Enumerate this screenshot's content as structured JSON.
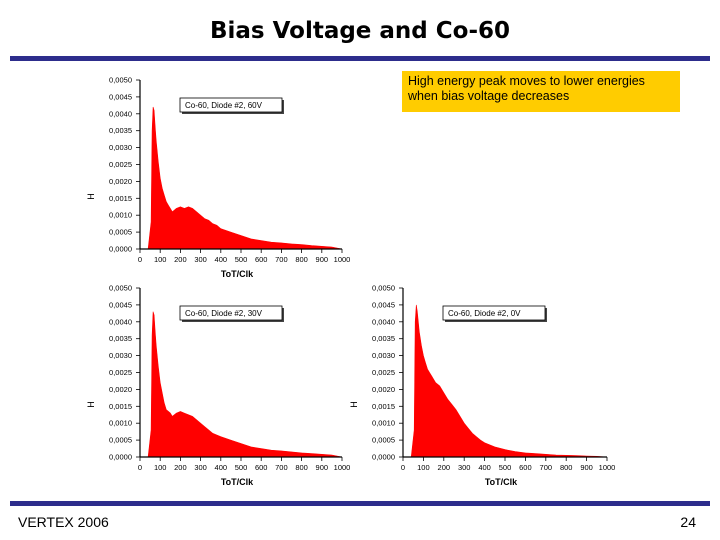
{
  "slide": {
    "title": "Bias Voltage and Co-60",
    "note": "High energy peak moves to lower energies when bias voltage decreases",
    "footer_left": "VERTEX 2006",
    "page_number": "24",
    "rule_color": "#2d2d8c",
    "note_color": "#ffcc00"
  },
  "chart_data": [
    {
      "type": "area",
      "legend": "Co-60, Diode #2, 60V",
      "xlabel": "ToT/Clk",
      "ylabel": "H",
      "xlim": [
        0,
        1000
      ],
      "ylim": [
        0,
        0.005
      ],
      "xticks": [
        "0",
        "100",
        "200",
        "300",
        "400",
        "500",
        "600",
        "700",
        "800",
        "900",
        "1000"
      ],
      "yticks": [
        "0,0000",
        "0,0005",
        "0,0010",
        "0,0015",
        "0,0020",
        "0,0025",
        "0,0030",
        "0,0035",
        "0,0040",
        "0,0045",
        "0,0050"
      ],
      "color": "#ff0000",
      "x": [
        0,
        40,
        55,
        60,
        65,
        70,
        75,
        80,
        90,
        100,
        110,
        120,
        130,
        140,
        150,
        160,
        180,
        200,
        220,
        240,
        260,
        280,
        300,
        320,
        340,
        360,
        380,
        400,
        450,
        500,
        550,
        600,
        650,
        700,
        750,
        800,
        850,
        900,
        950,
        1000
      ],
      "y": [
        0,
        0,
        0.0008,
        0.0035,
        0.0042,
        0.0041,
        0.0036,
        0.0032,
        0.0026,
        0.0021,
        0.0018,
        0.0016,
        0.0014,
        0.0013,
        0.0012,
        0.0011,
        0.0012,
        0.00125,
        0.0012,
        0.00125,
        0.0012,
        0.0011,
        0.001,
        0.0009,
        0.00085,
        0.00075,
        0.0007,
        0.0006,
        0.0005,
        0.0004,
        0.0003,
        0.00025,
        0.0002,
        0.00018,
        0.00015,
        0.00013,
        0.0001,
        8e-05,
        6e-05,
        0
      ]
    },
    {
      "type": "area",
      "legend": "Co-60, Diode #2, 30V",
      "xlabel": "ToT/Clk",
      "ylabel": "H",
      "xlim": [
        0,
        1000
      ],
      "ylim": [
        0,
        0.005
      ],
      "xticks": [
        "0",
        "100",
        "200",
        "300",
        "400",
        "500",
        "600",
        "700",
        "800",
        "900",
        "1000"
      ],
      "yticks": [
        "0,0000",
        "0,0005",
        "0,0010",
        "0,0015",
        "0,0020",
        "0,0025",
        "0,0030",
        "0,0035",
        "0,0040",
        "0,0045",
        "0,0050"
      ],
      "color": "#ff0000",
      "x": [
        0,
        40,
        55,
        60,
        65,
        70,
        75,
        80,
        90,
        100,
        110,
        120,
        130,
        140,
        150,
        160,
        180,
        200,
        220,
        240,
        260,
        280,
        300,
        320,
        340,
        360,
        380,
        400,
        450,
        500,
        550,
        600,
        650,
        700,
        750,
        800,
        850,
        900,
        950,
        1000
      ],
      "y": [
        0,
        0,
        0.0008,
        0.0036,
        0.0043,
        0.0042,
        0.0037,
        0.0033,
        0.0027,
        0.0022,
        0.0019,
        0.0016,
        0.0014,
        0.00135,
        0.0013,
        0.0012,
        0.0013,
        0.00135,
        0.0013,
        0.00125,
        0.0012,
        0.0011,
        0.001,
        0.0009,
        0.0008,
        0.0007,
        0.00065,
        0.0006,
        0.0005,
        0.0004,
        0.0003,
        0.00025,
        0.0002,
        0.00018,
        0.00015,
        0.00012,
        0.0001,
        8e-05,
        6e-05,
        0
      ]
    },
    {
      "type": "area",
      "legend": "Co-60, Diode #2, 0V",
      "xlabel": "ToT/Clk",
      "ylabel": "H",
      "xlim": [
        0,
        1000
      ],
      "ylim": [
        0,
        0.005
      ],
      "xticks": [
        "0",
        "100",
        "200",
        "300",
        "400",
        "500",
        "600",
        "700",
        "800",
        "900",
        "1000"
      ],
      "yticks": [
        "0,0000",
        "0,0005",
        "0,0010",
        "0,0015",
        "0,0020",
        "0,0025",
        "0,0030",
        "0,0035",
        "0,0040",
        "0,0045",
        "0,0050"
      ],
      "color": "#ff0000",
      "x": [
        0,
        40,
        55,
        60,
        65,
        70,
        75,
        80,
        90,
        100,
        110,
        120,
        130,
        140,
        150,
        160,
        180,
        200,
        220,
        240,
        260,
        280,
        300,
        320,
        340,
        360,
        380,
        400,
        450,
        500,
        550,
        600,
        650,
        700,
        750,
        800,
        850,
        900,
        950,
        1000
      ],
      "y": [
        0,
        0,
        0.0008,
        0.004,
        0.0045,
        0.0043,
        0.004,
        0.0037,
        0.0033,
        0.003,
        0.0028,
        0.0026,
        0.0025,
        0.0024,
        0.0023,
        0.0022,
        0.0021,
        0.0019,
        0.0017,
        0.00155,
        0.0014,
        0.0012,
        0.001,
        0.00085,
        0.0007,
        0.0006,
        0.0005,
        0.00042,
        0.0003,
        0.00022,
        0.00016,
        0.00012,
        0.0001,
        8e-05,
        6e-05,
        5e-05,
        4e-05,
        3e-05,
        2e-05,
        0
      ]
    }
  ]
}
